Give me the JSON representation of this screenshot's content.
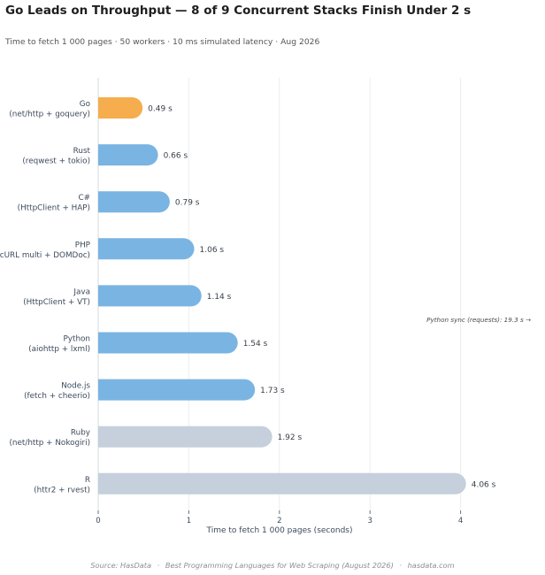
{
  "chart_data": {
    "type": "bar",
    "orientation": "horizontal",
    "title": "Go Leads on Throughput — 8 of 9 Concurrent Stacks Finish Under 2 s",
    "subtitle": "Time to fetch 1 000 pages · 50 workers · 10 ms simulated latency · Aug 2026",
    "xlabel": "Time to fetch 1 000 pages (seconds)",
    "xlim": [
      0,
      4.2
    ],
    "xticks": [
      "0",
      "1",
      "2",
      "3",
      "4"
    ],
    "grid": "vertical",
    "categories": [
      {
        "name": "Go",
        "detail": "(net/http + goquery)"
      },
      {
        "name": "Rust",
        "detail": "(reqwest + tokio)"
      },
      {
        "name": "C#",
        "detail": "(HttpClient + HAP)"
      },
      {
        "name": "PHP",
        "detail": "(cURL multi + DOMDoc)"
      },
      {
        "name": "Java",
        "detail": "(HttpClient + VT)"
      },
      {
        "name": "Python",
        "detail": "(aiohttp + lxml)"
      },
      {
        "name": "Node.js",
        "detail": "(fetch + cheerio)"
      },
      {
        "name": "Ruby",
        "detail": "(net/http + Nokogiri)"
      },
      {
        "name": "R",
        "detail": "(httr2 + rvest)"
      }
    ],
    "values": [
      0.49,
      0.66,
      0.79,
      1.06,
      1.14,
      1.54,
      1.73,
      1.92,
      4.06
    ],
    "value_labels": [
      "0.49 s",
      "0.66 s",
      "0.79 s",
      "1.06 s",
      "1.14 s",
      "1.54 s",
      "1.73 s",
      "1.92 s",
      "4.06 s"
    ],
    "bar_groups": [
      "leader",
      "fast",
      "fast",
      "fast",
      "fast",
      "fast",
      "fast",
      "slow",
      "slow"
    ],
    "colors": {
      "leader": "#f5ad4e",
      "fast": "#7ab4e2",
      "slow": "#c5d0dc"
    },
    "annotation": "Python sync (requests): 19.3 s →"
  },
  "source": {
    "prefix": "Source: HasData",
    "separator": "·",
    "title": "Best Programming Languages for Web Scraping (August 2026)",
    "site": "hasdata.com"
  }
}
